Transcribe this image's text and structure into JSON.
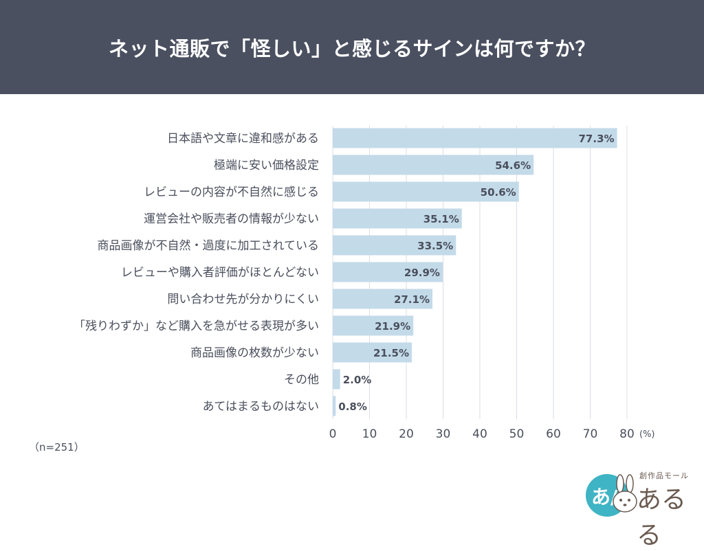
{
  "header": {
    "title": "ネット通販で「怪しい」と感じるサインは何ですか？"
  },
  "note": "（n=251）",
  "logo": {
    "icon_text": "あ/",
    "subtitle": "創作品モール",
    "name": "あるる"
  },
  "colors": {
    "header_bg": "#4a5060",
    "bar": "#c3dae9",
    "grid": "#d9dde3",
    "text": "#4a4f5c",
    "logo_teal": "#3fb4c4",
    "logo_brown": "#6a5a50"
  },
  "chart_data": {
    "type": "bar",
    "orientation": "horizontal",
    "categories": [
      "日本語や文章に違和感がある",
      "極端に安い価格設定",
      "レビューの内容が不自然に感じる",
      "運営会社や販売者の情報が少ない",
      "商品画像が不自然・過度に加工されている",
      "レビューや購入者評価がほとんどない",
      "問い合わせ先が分かりにくい",
      "「残りわずか」など購入を急がせる表現が多い",
      "商品画像の枚数が少ない",
      "その他",
      "あてはまるものはない"
    ],
    "values": [
      77.3,
      54.6,
      50.6,
      35.1,
      33.5,
      29.9,
      27.1,
      21.9,
      21.5,
      2.0,
      0.8
    ],
    "value_labels": [
      "77.3%",
      "54.6%",
      "50.6%",
      "35.1%",
      "33.5%",
      "29.9%",
      "27.1%",
      "21.9%",
      "21.5%",
      "2.0%",
      "0.8%"
    ],
    "xlim": [
      0,
      80
    ],
    "xticks": [
      "0",
      "10",
      "20",
      "30",
      "40",
      "50",
      "60",
      "70",
      "80"
    ],
    "unit": "(%)",
    "grid": true,
    "value_label_position": "inside-end, outside for small values"
  }
}
